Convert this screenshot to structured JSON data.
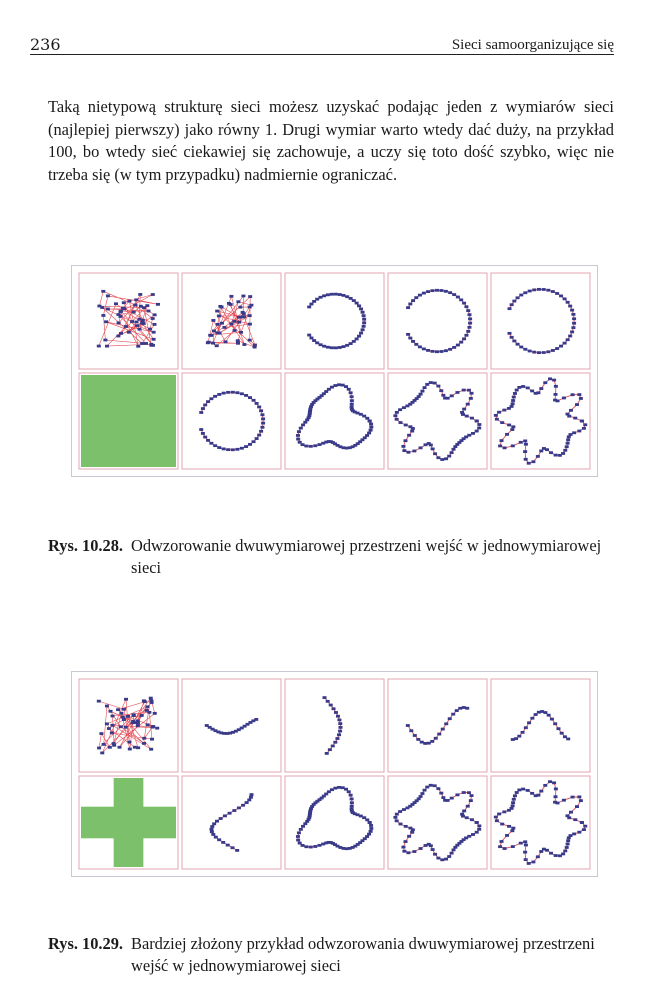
{
  "header": {
    "page_number": "236",
    "running_title": "Sieci samoorganizujące się"
  },
  "body_text": "Taką nietypową strukturę sieci możesz uzyskać podając jeden z wymiarów sieci (najlepiej pierwszy) jako równy 1. Drugi wymiar warto wtedy dać duży, na przykład 100, bo wtedy sieć ciekawiej się zachowuje, a uczy się toto dość szybko, więc nie trzeba się (w tym przypadku) nadmiernie ograniczać.",
  "figures": [
    {
      "label": "Rys. 10.28.",
      "caption": "Odwzorowanie dwuwymiarowej przestrzeni wejść w jednowymiarowej sieci",
      "input_shape": "square",
      "colors": {
        "frame": "#e3a5b0",
        "input_fill": "#7cc06b",
        "nodes": "#3a3a8a",
        "links": "#e24b55"
      }
    },
    {
      "label": "Rys. 10.29.",
      "caption": "Bardziej złożony przykład odwzorowania dwuwymiarowej przestrzeni wejść w jednowymiarowej sieci",
      "input_shape": "cross",
      "colors": {
        "frame": "#e3a5b0",
        "input_fill": "#7cc06b",
        "nodes": "#3a3a8a",
        "links": "#e24b55"
      }
    }
  ]
}
